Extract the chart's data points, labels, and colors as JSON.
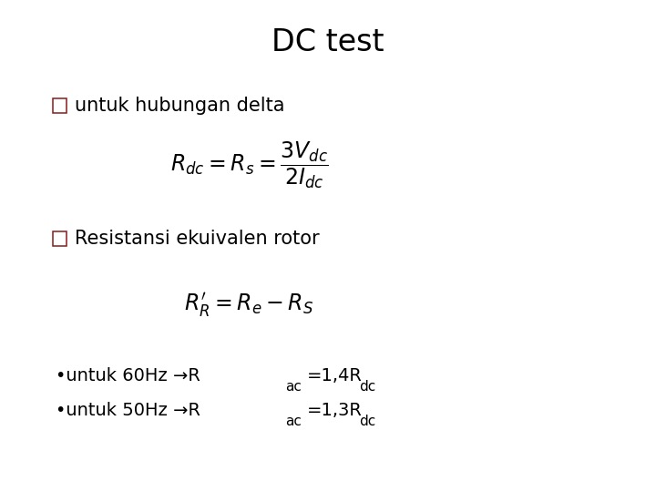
{
  "title": "DC test",
  "title_fontsize": 24,
  "background_color": "#ffffff",
  "text_color": "#000000",
  "bullet_color": "#8B1A1A",
  "bullet1_text": "untuk hubungan delta",
  "bullet2_text": "Resistansi ekuivalen rotor",
  "formula1": "$R_{dc} = R_s = \\dfrac{3V_{dc}}{2I_{dc}}$",
  "formula2": "$R^{\\prime}_{R} = R_e - R_S$",
  "font_size_bullet": 15,
  "font_size_formula": 17,
  "font_size_bottom": 14
}
